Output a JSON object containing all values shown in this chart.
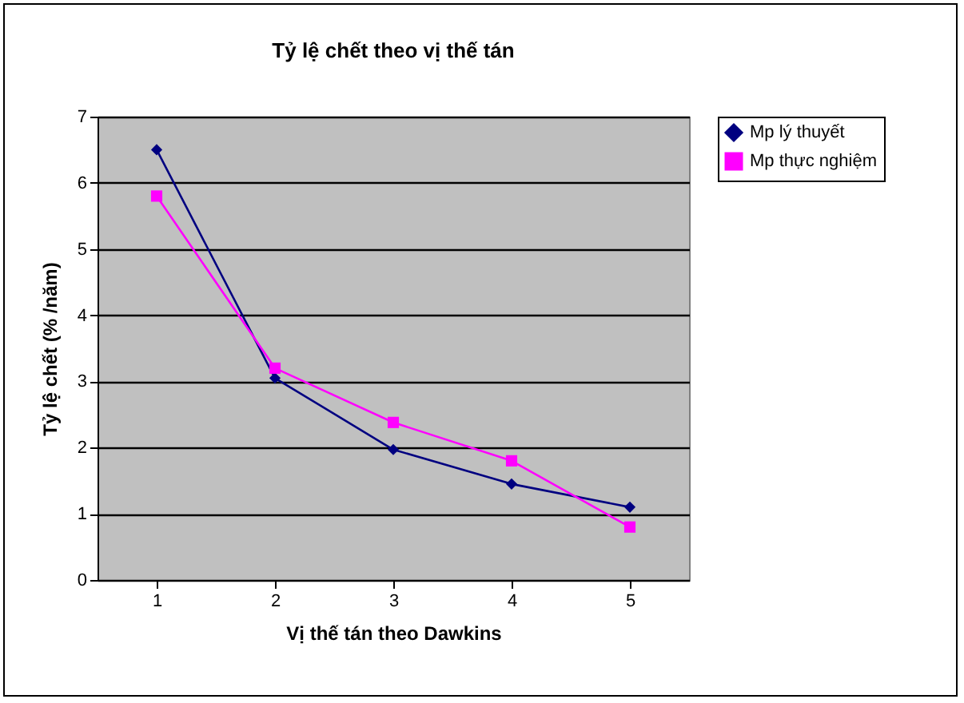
{
  "chart_data": {
    "type": "line",
    "title": "Tỷ lệ chết theo vị thế tán",
    "xlabel": "Vị thế tán theo Dawkins",
    "ylabel": "Tỷ lệ chết (% /năm)",
    "categories": [
      "1",
      "2",
      "3",
      "4",
      "5"
    ],
    "series": [
      {
        "name": "Mp lý thuyết",
        "color": "#000080",
        "marker": "diamond",
        "values": [
          6.5,
          3.05,
          1.97,
          1.45,
          1.1
        ]
      },
      {
        "name": "Mp thực nghiệm",
        "color": "#ff00ff",
        "marker": "square",
        "values": [
          5.8,
          3.2,
          2.38,
          1.8,
          0.8
        ]
      }
    ],
    "ylim": [
      0,
      7
    ],
    "yticks": [
      0,
      1,
      2,
      3,
      4,
      5,
      6,
      7
    ],
    "grid": "y",
    "legend": "right",
    "line_style": "solid"
  }
}
